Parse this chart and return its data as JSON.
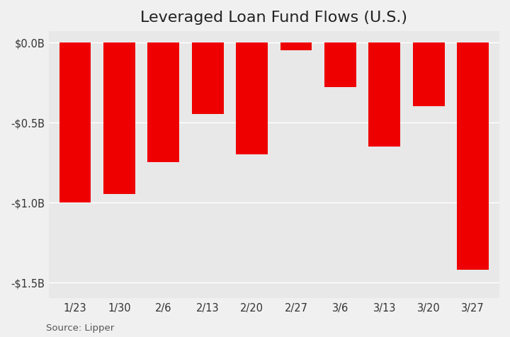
{
  "title": "Leveraged Loan Fund Flows (U.S.)",
  "categories": [
    "1/23",
    "1/30",
    "2/6",
    "2/13",
    "2/20",
    "2/27",
    "3/6",
    "3/13",
    "3/20",
    "3/27"
  ],
  "values": [
    -1.0,
    -0.95,
    -0.75,
    -0.45,
    -0.7,
    -0.05,
    -0.28,
    -0.65,
    -0.4,
    -1.42
  ],
  "bar_color": "#ee0000",
  "background_color": "#e8e8e8",
  "fig_background_color": "#f0f0f0",
  "ylim": [
    -1.6,
    0.07
  ],
  "yticks": [
    0.0,
    -0.5,
    -1.0,
    -1.5
  ],
  "ytick_labels": [
    "$0.0B",
    "-$0.5B",
    "-$1.0B",
    "-$1.5B"
  ],
  "source_text": "Source: Lipper",
  "title_fontsize": 16,
  "tick_fontsize": 10.5,
  "source_fontsize": 9.5,
  "bar_width": 0.72
}
